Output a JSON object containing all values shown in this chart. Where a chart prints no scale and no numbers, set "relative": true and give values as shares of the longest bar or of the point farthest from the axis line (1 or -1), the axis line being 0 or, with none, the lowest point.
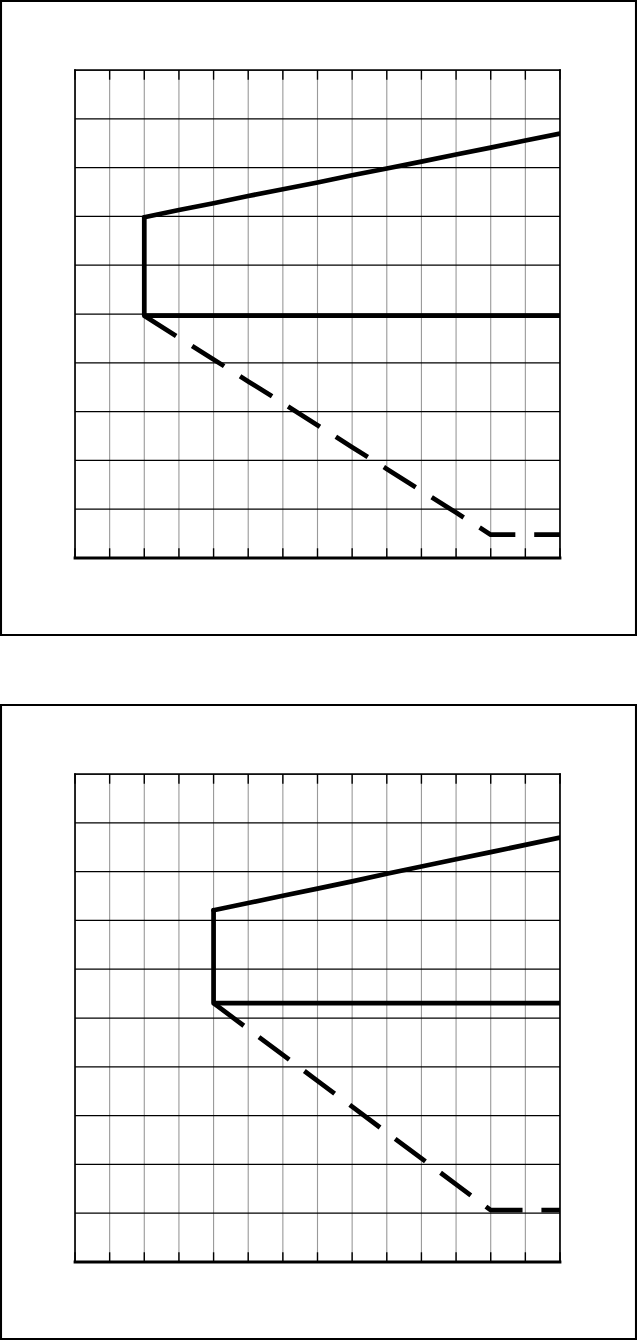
{
  "chart_data": [
    {
      "type": "line",
      "relative": true,
      "grid": true,
      "categories": [
        null,
        null,
        null,
        null,
        null,
        null,
        null,
        null,
        null,
        null,
        null,
        null,
        null,
        null,
        null
      ],
      "series": [
        {
          "color": "#000000",
          "line_style": "solid",
          "values": [
            null,
            null,
            0.803,
            0.82,
            0.836,
            0.853,
            0.869,
            0.885,
            0.902,
            0.918,
            0.934,
            0.951,
            0.967,
            0.984,
            1
          ]
        },
        {
          "type": "step",
          "color": "#000000",
          "line_style": "solid",
          "values": [
            null,
            null,
            0.803,
            0.571,
            0.571,
            0.571,
            0.571,
            0.571,
            0.571,
            0.571,
            0.571,
            0.571,
            0.571,
            0.571,
            0.571
          ]
        },
        {
          "color": "#000000",
          "line_style": "dashed",
          "values": [
            null,
            null,
            0.571,
            0.519,
            0.468,
            0.416,
            0.365,
            0.313,
            0.261,
            0.21,
            0.158,
            0.107,
            0.055,
            0.055,
            0.055
          ]
        }
      ]
    },
    {
      "type": "line",
      "relative": true,
      "grid": true,
      "categories": [
        null,
        null,
        null,
        null,
        null,
        null,
        null,
        null,
        null,
        null,
        null,
        null,
        null,
        null,
        null
      ],
      "series": [
        {
          "color": "#000000",
          "line_style": "solid",
          "values": [
            null,
            null,
            null,
            null,
            0.829,
            0.846,
            0.863,
            0.88,
            0.897,
            0.915,
            0.932,
            0.949,
            0.966,
            0.983,
            1
          ]
        },
        {
          "type": "step",
          "color": "#000000",
          "line_style": "solid",
          "values": [
            null,
            null,
            null,
            null,
            0.829,
            0.61,
            0.61,
            0.61,
            0.61,
            0.61,
            0.61,
            0.61,
            0.61,
            0.61,
            0.61
          ]
        },
        {
          "color": "#000000",
          "line_style": "dashed",
          "values": [
            null,
            null,
            null,
            null,
            0.61,
            0.549,
            0.488,
            0.427,
            0.366,
            0.305,
            0.244,
            0.183,
            0.122,
            0.122,
            0.122
          ]
        }
      ]
    }
  ]
}
